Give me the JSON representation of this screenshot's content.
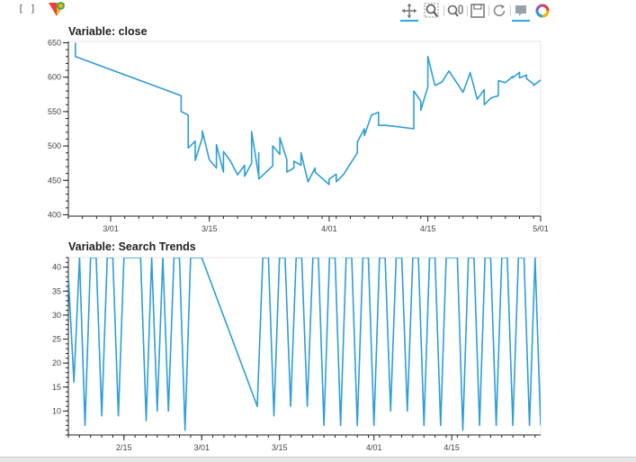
{
  "cell": {
    "prompt": "[ ]"
  },
  "toolbar": {
    "tools": [
      {
        "name": "pan-icon",
        "active": true
      },
      {
        "name": "box-zoom-icon",
        "active": false
      },
      {
        "name": "wheel-zoom-icon",
        "active": false
      },
      {
        "name": "save-icon",
        "active": false
      },
      {
        "name": "reset-icon",
        "active": false
      },
      {
        "name": "hover-icon",
        "active": true
      },
      {
        "name": "bokeh-logo-icon",
        "active": false
      }
    ],
    "accent_color": "#26aae1"
  },
  "chart_data": [
    {
      "type": "line",
      "title": "Variable: close",
      "xlabel": "",
      "ylabel": "",
      "x_type": "datetime",
      "xlim": [
        "2021-02-23",
        "2021-05-01"
      ],
      "ylim": [
        398,
        652
      ],
      "y_ticks": [
        400,
        450,
        500,
        550,
        600,
        650
      ],
      "x_ticks": [
        {
          "date": "2021-03-01",
          "label": "3/01"
        },
        {
          "date": "2021-03-15",
          "label": "3/15"
        },
        {
          "date": "2021-04-01",
          "label": "4/01"
        },
        {
          "date": "2021-04-15",
          "label": "4/15"
        },
        {
          "date": "2021-05-01",
          "label": "5/01"
        }
      ],
      "grid": false,
      "line_color": "#2e9ed6",
      "series": [
        {
          "x": [
            "2021-02-24",
            "2021-02-24",
            "2021-03-11",
            "2021-03-11",
            "2021-03-12",
            "2021-03-12",
            "2021-03-13",
            "2021-03-13",
            "2021-03-14",
            "2021-03-14",
            "2021-03-15",
            "2021-03-16",
            "2021-03-16",
            "2021-03-17",
            "2021-03-17",
            "2021-03-18",
            "2021-03-19",
            "2021-03-20",
            "2021-03-20",
            "2021-03-21",
            "2021-03-21",
            "2021-03-22",
            "2021-03-22",
            "2021-03-22",
            "2021-03-24",
            "2021-03-24",
            "2021-03-25",
            "2021-03-25",
            "2021-03-26",
            "2021-03-26",
            "2021-03-27",
            "2021-03-27",
            "2021-03-28",
            "2021-03-28",
            "2021-03-29",
            "2021-03-30",
            "2021-03-30",
            "2021-04-01",
            "2021-04-01",
            "2021-04-02",
            "2021-04-02",
            "2021-04-03",
            "2021-04-03",
            "2021-04-05",
            "2021-04-05",
            "2021-04-06",
            "2021-04-06",
            "2021-04-07",
            "2021-04-08",
            "2021-04-08",
            "2021-04-09",
            "2021-04-10",
            "2021-04-13",
            "2021-04-13",
            "2021-04-14",
            "2021-04-14",
            "2021-04-15",
            "2021-04-15",
            "2021-04-16",
            "2021-04-17",
            "2021-04-18",
            "2021-04-20",
            "2021-04-21",
            "2021-04-21",
            "2021-04-22",
            "2021-04-23",
            "2021-04-23",
            "2021-04-24",
            "2021-04-24",
            "2021-04-25",
            "2021-04-25",
            "2021-04-25",
            "2021-04-26",
            "2021-04-27",
            "2021-04-27",
            "2021-04-28",
            "2021-04-28",
            "2021-04-29",
            "2021-04-29",
            "2021-04-30",
            "2021-04-30",
            "2021-05-01"
          ],
          "y": [
            650,
            630,
            573,
            550,
            545,
            497,
            507,
            479,
            512,
            522,
            480,
            468,
            502,
            462,
            492,
            478,
            458,
            472,
            456,
            475,
            521,
            456,
            490,
            452,
            471,
            500,
            488,
            512,
            480,
            462,
            468,
            478,
            472,
            490,
            448,
            468,
            462,
            444,
            452,
            459,
            448,
            458,
            458,
            490,
            506,
            525,
            515,
            545,
            549,
            530,
            530,
            529,
            525,
            580,
            565,
            552,
            586,
            630,
            588,
            593,
            609,
            578,
            606,
            607,
            568,
            582,
            560,
            570,
            570,
            573,
            592,
            595,
            592,
            601,
            599,
            607,
            599,
            603,
            598,
            590,
            588,
            596
          ]
        }
      ]
    },
    {
      "type": "line",
      "title": "Variable: Search Trends",
      "xlabel": "",
      "ylabel": "",
      "x_type": "datetime",
      "xlim": [
        "2021-02-05",
        "2021-05-01"
      ],
      "ylim": [
        5,
        42
      ],
      "y_ticks": [
        10,
        15,
        20,
        25,
        30,
        35,
        40
      ],
      "x_ticks": [
        {
          "date": "2021-02-15",
          "label": "2/15"
        },
        {
          "date": "2021-03-01",
          "label": "3/01"
        },
        {
          "date": "2021-03-15",
          "label": "3/15"
        },
        {
          "date": "2021-04-01",
          "label": "4/01"
        },
        {
          "date": "2021-04-15",
          "label": "4/15"
        }
      ],
      "grid": false,
      "line_color": "#2e9ed6",
      "series": [
        {
          "x": [
            "2021-02-05",
            "2021-02-06",
            "2021-02-07",
            "2021-02-08",
            "2021-02-09",
            "2021-02-10",
            "2021-02-11",
            "2021-02-12",
            "2021-02-13",
            "2021-02-14",
            "2021-02-15",
            "2021-02-18",
            "2021-02-19",
            "2021-02-20",
            "2021-02-21",
            "2021-02-22",
            "2021-02-23",
            "2021-02-24",
            "2021-02-25",
            "2021-02-26",
            "2021-02-27",
            "2021-03-01",
            "2021-03-11",
            "2021-03-12",
            "2021-03-13",
            "2021-03-14",
            "2021-03-15",
            "2021-03-16",
            "2021-03-17",
            "2021-03-18",
            "2021-03-19",
            "2021-03-20",
            "2021-03-21",
            "2021-03-22",
            "2021-03-23",
            "2021-03-24",
            "2021-03-25",
            "2021-03-26",
            "2021-03-27",
            "2021-03-28",
            "2021-03-29",
            "2021-03-30",
            "2021-03-31",
            "2021-04-01",
            "2021-04-02",
            "2021-04-03",
            "2021-04-04",
            "2021-04-05",
            "2021-04-06",
            "2021-04-07",
            "2021-04-08",
            "2021-04-09",
            "2021-04-10",
            "2021-04-11",
            "2021-04-12",
            "2021-04-13",
            "2021-04-14",
            "2021-04-15",
            "2021-04-16",
            "2021-04-17",
            "2021-04-18",
            "2021-04-19",
            "2021-04-20",
            "2021-04-21",
            "2021-04-22",
            "2021-04-23",
            "2021-04-24",
            "2021-04-25",
            "2021-04-26",
            "2021-04-27",
            "2021-04-28",
            "2021-04-29",
            "2021-04-30",
            "2021-05-01"
          ],
          "y": [
            38,
            16,
            42,
            7,
            42,
            42,
            9,
            42,
            42,
            9,
            42,
            42,
            8,
            42,
            10,
            42,
            10,
            42,
            42,
            6,
            42,
            42,
            11,
            42,
            42,
            9,
            42,
            42,
            11,
            42,
            42,
            11,
            42,
            42,
            7,
            42,
            42,
            7,
            42,
            42,
            7,
            42,
            42,
            7,
            42,
            42,
            10,
            42,
            42,
            10,
            42,
            42,
            7,
            42,
            42,
            7,
            42,
            42,
            42,
            6,
            42,
            42,
            7,
            42,
            42,
            7,
            42,
            42,
            7,
            42,
            42,
            7,
            42,
            7
          ]
        }
      ]
    }
  ]
}
